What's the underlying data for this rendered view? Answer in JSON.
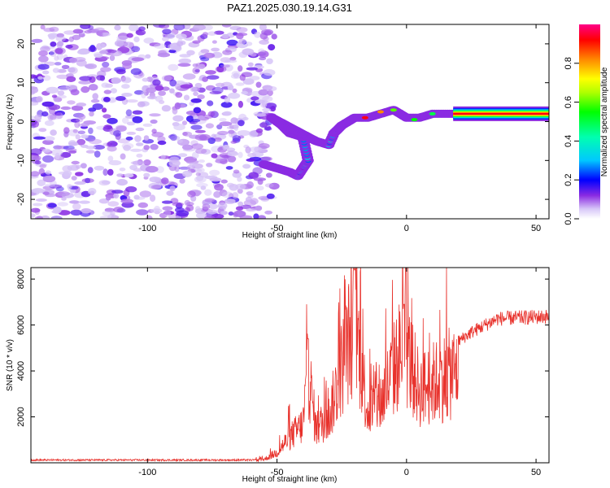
{
  "title": "PAZ1.2025.030.19.14.G31",
  "chart_data": [
    {
      "type": "heatmap",
      "name": "spectrogram",
      "xlabel": "Height of straight line (km)",
      "ylabel": "Frequency (Hz)",
      "xlim": [
        -145,
        55
      ],
      "ylim": [
        -25,
        25
      ],
      "x_ticks": [
        -100,
        -50,
        0,
        50
      ],
      "y_ticks": [
        -20,
        -10,
        0,
        10,
        20
      ],
      "colorbar": {
        "label": "Normalized spectral amplitude",
        "range": [
          0.0,
          1.0
        ],
        "ticks": [
          0.0,
          0.2,
          0.4,
          0.6,
          0.8
        ]
      },
      "ridge": [
        {
          "x": -55,
          "y": -11
        },
        {
          "x": -50,
          "y": -12
        },
        {
          "x": -45,
          "y": -13
        },
        {
          "x": -42,
          "y": -14
        },
        {
          "x": -38,
          "y": -10
        },
        {
          "x": -40,
          "y": -4
        },
        {
          "x": -45,
          "y": -3
        },
        {
          "x": -48,
          "y": -1
        },
        {
          "x": -52,
          "y": 1
        },
        {
          "x": -35,
          "y": -5
        },
        {
          "x": -30,
          "y": -6
        },
        {
          "x": -28,
          "y": -3
        },
        {
          "x": -25,
          "y": -1
        },
        {
          "x": -20,
          "y": 1
        },
        {
          "x": -15,
          "y": 1
        },
        {
          "x": -10,
          "y": 2
        },
        {
          "x": -5,
          "y": 3
        },
        {
          "x": 0,
          "y": 1
        },
        {
          "x": 5,
          "y": 1
        },
        {
          "x": 10,
          "y": 2
        },
        {
          "x": 15,
          "y": 2
        },
        {
          "x": 20,
          "y": 2
        },
        {
          "x": 55,
          "y": 2
        }
      ]
    },
    {
      "type": "line",
      "name": "snr",
      "xlabel": "Height of straight line (km)",
      "ylabel": "SNR (10 * v/v)",
      "xlim": [
        -145,
        55
      ],
      "ylim": [
        0,
        8500
      ],
      "x_ticks": [
        -100,
        -50,
        0,
        50
      ],
      "y_ticks": [
        2000,
        4000,
        6000,
        8000
      ],
      "color": "#e8322c",
      "key_points": [
        {
          "x": -145,
          "y": 100
        },
        {
          "x": -60,
          "y": 100
        },
        {
          "x": -55,
          "y": 200
        },
        {
          "x": -50,
          "y": 600
        },
        {
          "x": -45,
          "y": 1500
        },
        {
          "x": -40,
          "y": 2200
        },
        {
          "x": -38,
          "y": 5400
        },
        {
          "x": -35,
          "y": 2000
        },
        {
          "x": -30,
          "y": 2600
        },
        {
          "x": -20,
          "y": 8400
        },
        {
          "x": -15,
          "y": 3000
        },
        {
          "x": -10,
          "y": 3500
        },
        {
          "x": -1,
          "y": 6900
        },
        {
          "x": 5,
          "y": 4200
        },
        {
          "x": 15,
          "y": 5000
        },
        {
          "x": 25,
          "y": 5800
        },
        {
          "x": 35,
          "y": 6400
        },
        {
          "x": 55,
          "y": 6500
        }
      ]
    }
  ]
}
